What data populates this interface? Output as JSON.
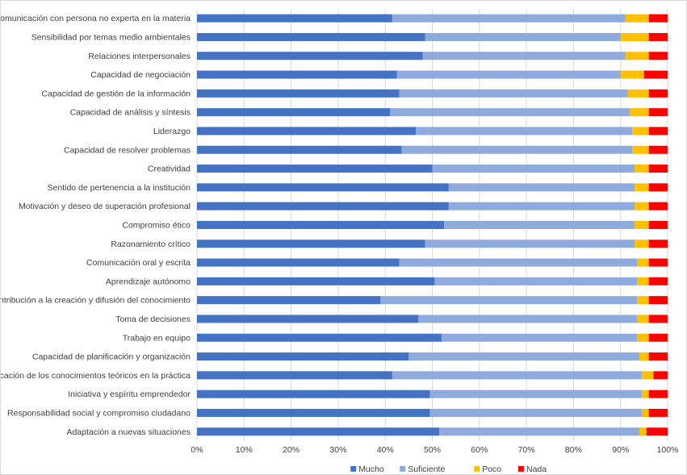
{
  "chart_data": {
    "type": "bar",
    "orientation": "horizontal",
    "stacked": "percent",
    "title": "",
    "xlabel": "",
    "ylabel": "",
    "xlim": [
      0,
      100
    ],
    "x_ticks": [
      "0%",
      "10%",
      "20%",
      "30%",
      "40%",
      "50%",
      "60%",
      "70%",
      "80%",
      "90%",
      "100%"
    ],
    "grid": "vertical",
    "legend_position": "bottom",
    "categories": [
      "Comunicación con persona no experta en la materia",
      "Sensibilidad por temas medio ambientales",
      "Relaciones interpersonales",
      "Capacidad de negociación",
      "Capacidad de gestión de la información",
      "Capacidad de análisis y síntesis",
      "Liderazgo",
      "Capacidad de resolver problemas",
      "Creatividad",
      "Sentido de pertenencia a la institución",
      "Motivación y deseo de superación profesional",
      "Compromiso ético",
      "Razonamiento crítico",
      "Comunicación oral y escrita",
      "Aprendizaje autónomo",
      "Contribución a la creación y difusión del conocimiento",
      "Toma de decisiones",
      "Trabajo en equipo",
      "Capacidad de planificación y organización",
      "Aplicación de los conocimientos teóricos en la práctica",
      "Iniciativa y espíritu emprendedor",
      "Responsabilidad social y compromiso ciudadano",
      "Adaptación a nuevas situaciones"
    ],
    "series": [
      {
        "name": "Mucho",
        "color": "#4472c4",
        "values": [
          41.5,
          48.5,
          48,
          42.5,
          43,
          41,
          46.5,
          43.5,
          50,
          53.5,
          53.5,
          52.5,
          48.5,
          43,
          50.5,
          39,
          47,
          52,
          45,
          41.5,
          49.5,
          49.5,
          51.5
        ]
      },
      {
        "name": "Suficiente",
        "color": "#8faadc",
        "values": [
          49.5,
          41.5,
          43,
          47.5,
          48.5,
          51,
          46,
          49,
          43,
          39.5,
          39.5,
          40.5,
          44.5,
          50.5,
          43,
          54.5,
          46.5,
          41.5,
          49,
          53,
          45,
          45,
          42.5
        ]
      },
      {
        "name": "Poco",
        "color": "#ffc000",
        "values": [
          5,
          6,
          5,
          5,
          4.5,
          4,
          3.5,
          3.5,
          3,
          3,
          3,
          3,
          3,
          2.5,
          2.5,
          2.5,
          2.5,
          2.5,
          2,
          2.5,
          1.5,
          1.5,
          1.5
        ]
      },
      {
        "name": "Nada",
        "color": "#ff0000",
        "values": [
          4,
          4,
          4,
          5,
          4,
          4,
          4,
          4,
          4,
          4,
          4,
          4,
          4,
          4,
          4,
          4,
          4,
          4,
          4,
          3,
          4,
          4,
          4.5
        ]
      }
    ]
  }
}
